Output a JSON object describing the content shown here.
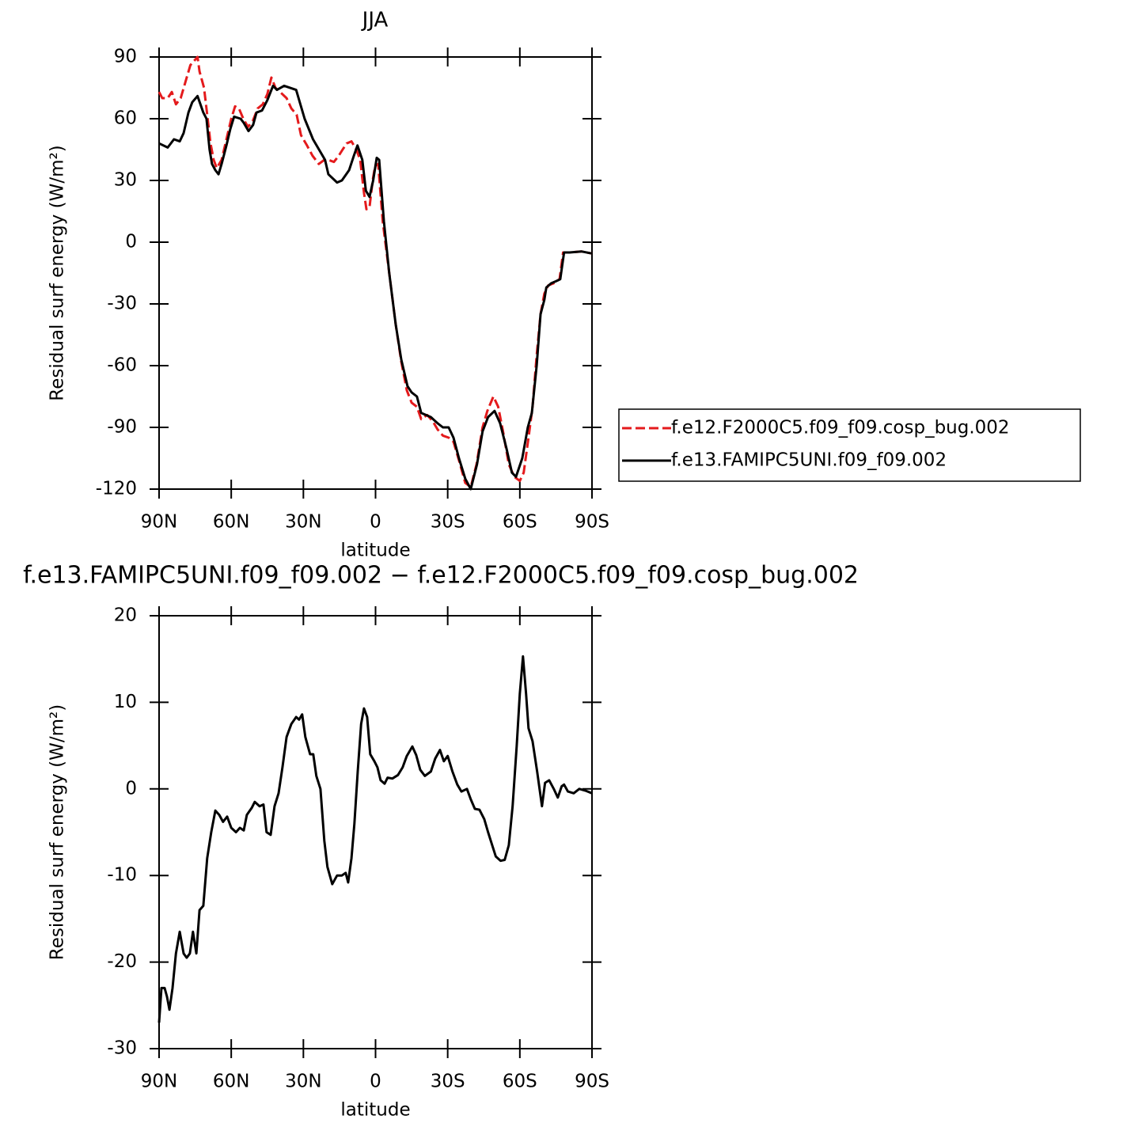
{
  "chart_data": [
    {
      "type": "line",
      "title": "JJA",
      "xlabel": "latitude",
      "ylabel": "Residual surf energy (W/m²)",
      "xlim": [
        90,
        -90
      ],
      "xticks": [
        {
          "value": 90,
          "label": "90N"
        },
        {
          "value": 60,
          "label": "60N"
        },
        {
          "value": 30,
          "label": "30N"
        },
        0,
        {
          "value": -30,
          "label": "30S"
        },
        {
          "value": -60,
          "label": "60S"
        },
        {
          "value": -90,
          "label": "90S"
        }
      ],
      "ylim": [
        -120,
        90
      ],
      "yticks": [
        -120,
        -90,
        -60,
        -30,
        0,
        30,
        60,
        90
      ],
      "legend": "right",
      "series": [
        {
          "name": "f.e12.F2000C5.f09_f09.cosp_bug.002",
          "color": "#e41a1c",
          "dash": true,
          "x": [
            90,
            88.7,
            86.4,
            84.7,
            83,
            81,
            79,
            77,
            74,
            73.2,
            71.3,
            70,
            68.6,
            67.3,
            66,
            64,
            62,
            60,
            58.4,
            56.8,
            55,
            53,
            51,
            49,
            46.9,
            45,
            43.3,
            41.6,
            39.7,
            37,
            35,
            32.8,
            31,
            28.5,
            26.2,
            23.6,
            21.3,
            19.6,
            17.3,
            15.3,
            13.7,
            12,
            10,
            8,
            6.4,
            4.8,
            3.8,
            2.5,
            1.2,
            0.2,
            -1.1,
            -3,
            -5.7,
            -8.4,
            -10.7,
            -13,
            -15,
            -17.2,
            -19,
            -21.5,
            -23.8,
            -25.8,
            -28,
            -30.4,
            -32.4,
            -34.7,
            -37.3,
            -39.6,
            -42,
            -44.5,
            -46.5,
            -49,
            -51,
            -53,
            -55.4,
            -57.7,
            -60,
            -61.6,
            -63.6,
            -65.3,
            -67,
            -68.6,
            -70.2,
            -71.8,
            -74,
            -76.5,
            -78,
            -80.7,
            -85.6,
            -90
          ],
          "values": [
            73,
            70,
            70,
            73,
            67,
            70,
            78,
            86,
            90,
            83,
            75,
            62,
            48,
            40,
            36,
            40,
            50,
            60,
            66,
            65,
            60,
            56,
            59,
            65,
            67,
            72,
            80,
            75,
            73,
            70,
            65,
            62,
            52,
            47,
            42,
            38,
            40,
            40,
            39,
            42,
            45,
            48,
            49,
            45,
            40,
            24,
            16,
            17,
            30,
            37,
            38,
            10,
            -15,
            -40,
            -58,
            -72,
            -78,
            -80,
            -86,
            -84,
            -87,
            -91,
            -94,
            -95,
            -97,
            -106,
            -117,
            -119,
            -108,
            -90,
            -82,
            -75,
            -80,
            -92,
            -108,
            -114,
            -116,
            -112,
            -95,
            -80,
            -55,
            -35,
            -25,
            -21,
            -20,
            -18,
            -5,
            -5,
            -4.5,
            -5.5
          ]
        },
        {
          "name": "f.e13.FAMIPC5UNI.f09_f09.002",
          "color": "#000000",
          "dash": false,
          "x": [
            90,
            86.4,
            83.8,
            81.4,
            79.8,
            77.8,
            76.2,
            74,
            71.6,
            70.3,
            69,
            68,
            66.6,
            65.3,
            64,
            62,
            60.4,
            58.8,
            56.1,
            54.8,
            52.8,
            50.9,
            49.5,
            47.2,
            45,
            42.6,
            41,
            38,
            33,
            29.5,
            26,
            21,
            19.6,
            16,
            14,
            11,
            9,
            7.5,
            5.5,
            4,
            2.5,
            1,
            -0.5,
            -1.5,
            -3.5,
            -5.7,
            -8.4,
            -10.7,
            -13.3,
            -15,
            -17.2,
            -19,
            -21,
            -23,
            -25.8,
            -28,
            -30.4,
            -32.4,
            -34.7,
            -37.3,
            -39.6,
            -42.2,
            -44.5,
            -46.8,
            -49.5,
            -51.8,
            -54.4,
            -56.7,
            -58.4,
            -61,
            -63.3,
            -65,
            -67,
            -68.6,
            -70.2,
            -71,
            -73,
            -75,
            -76.8,
            -78.4,
            -80.7,
            -85.6,
            -90
          ],
          "values": [
            48,
            46,
            50,
            49,
            53,
            63,
            68,
            71,
            63,
            60,
            45,
            38,
            35,
            33,
            38,
            47,
            55,
            61,
            60,
            58,
            54,
            57,
            63,
            64,
            69,
            76,
            74,
            76,
            74,
            60,
            50,
            40,
            33,
            29,
            30,
            35,
            42,
            47,
            40,
            25,
            22,
            30,
            41,
            40,
            10,
            -15,
            -40,
            -57,
            -70,
            -73,
            -75,
            -83,
            -84,
            -85,
            -88,
            -90,
            -90,
            -95,
            -105,
            -115,
            -120,
            -108,
            -92,
            -85,
            -82,
            -88,
            -100,
            -112,
            -114,
            -105,
            -90,
            -83,
            -60,
            -35,
            -28,
            -22,
            -20,
            -19,
            -18,
            -5,
            -5,
            -4.5,
            -5.5
          ]
        }
      ]
    },
    {
      "type": "line",
      "title": "f.e13.FAMIPC5UNI.f09_f09.002 − f.e12.F2000C5.f09_f09.cosp_bug.002",
      "xlabel": "latitude",
      "ylabel": "Residual surf energy (W/m²)",
      "xlim": [
        90,
        -90
      ],
      "xticks": [
        {
          "value": 90,
          "label": "90N"
        },
        {
          "value": 60,
          "label": "60N"
        },
        {
          "value": 30,
          "label": "30N"
        },
        0,
        {
          "value": -30,
          "label": "30S"
        },
        {
          "value": -60,
          "label": "60S"
        },
        {
          "value": -90,
          "label": "90S"
        }
      ],
      "ylim": [
        -30,
        20
      ],
      "yticks": [
        -30,
        -20,
        -10,
        0,
        10,
        20
      ],
      "series": [
        {
          "color": "#000000",
          "dash": false,
          "x": [
            90,
            89,
            87.7,
            86.7,
            85.7,
            84.4,
            83,
            81.4,
            79.8,
            78.5,
            77.2,
            75.9,
            74.5,
            73.2,
            71.6,
            70,
            68.3,
            66.6,
            65,
            63.4,
            61.7,
            60,
            58,
            56.4,
            54.8,
            53.5,
            51.5,
            50.2,
            48.2,
            46.6,
            45.3,
            43.6,
            42,
            40.3,
            38.7,
            37,
            35,
            33,
            31.8,
            30.5,
            29.2,
            27.2,
            25.9,
            24.6,
            22.9,
            21.3,
            20,
            18,
            16,
            14,
            12.4,
            11.4,
            10,
            8.8,
            7.4,
            6,
            4.8,
            3.5,
            2.2,
            0.5,
            -0.8,
            -2.1,
            -3.8,
            -5,
            -7,
            -9.3,
            -11.3,
            -13,
            -15.3,
            -16.9,
            -18.6,
            -20.5,
            -23,
            -24.8,
            -26.8,
            -28.4,
            -30,
            -32,
            -34,
            -35.7,
            -38,
            -39.6,
            -41.3,
            -43.2,
            -45.2,
            -46.8,
            -48.5,
            -50,
            -52,
            -53.7,
            -55.4,
            -57,
            -58.7,
            -60,
            -61.3,
            -62.6,
            -63.6,
            -65.3,
            -67.2,
            -69.2,
            -70.5,
            -72.2,
            -74.1,
            -75.8,
            -77.4,
            -78.4,
            -80,
            -82.4,
            -84.7,
            -87.3,
            -90
          ],
          "values": [
            -27,
            -23,
            -23,
            -24,
            -25.5,
            -23,
            -19,
            -16.5,
            -19,
            -19.5,
            -19,
            -16.5,
            -19,
            -14,
            -13.5,
            -8,
            -5,
            -2.5,
            -3,
            -3.8,
            -3.2,
            -4.5,
            -5,
            -4.5,
            -4.8,
            -3,
            -2.2,
            -1.5,
            -2,
            -1.8,
            -5,
            -5.3,
            -2,
            -0.5,
            2.5,
            6,
            7.5,
            8.3,
            8,
            8.6,
            6,
            4,
            4,
            1.5,
            0,
            -6,
            -9,
            -11,
            -10,
            -10,
            -9.7,
            -10.8,
            -8,
            -4,
            2,
            7.5,
            9.3,
            8.3,
            4,
            3.2,
            2.5,
            1,
            0.6,
            1.3,
            1.2,
            1.6,
            2.5,
            3.8,
            4.9,
            3.9,
            2.2,
            1.5,
            2,
            3.5,
            4.5,
            3.2,
            3.8,
            2,
            0.5,
            -0.3,
            0,
            -1.2,
            -2.3,
            -2.4,
            -3.5,
            -5,
            -6.5,
            -7.8,
            -8.3,
            -8.2,
            -6.5,
            -2,
            5,
            11,
            15.3,
            11,
            7,
            5.5,
            2,
            -2,
            0.7,
            1,
            0,
            -1,
            0.3,
            0.5,
            -0.3,
            -0.5,
            0,
            -0.2,
            -0.5
          ]
        }
      ]
    }
  ]
}
